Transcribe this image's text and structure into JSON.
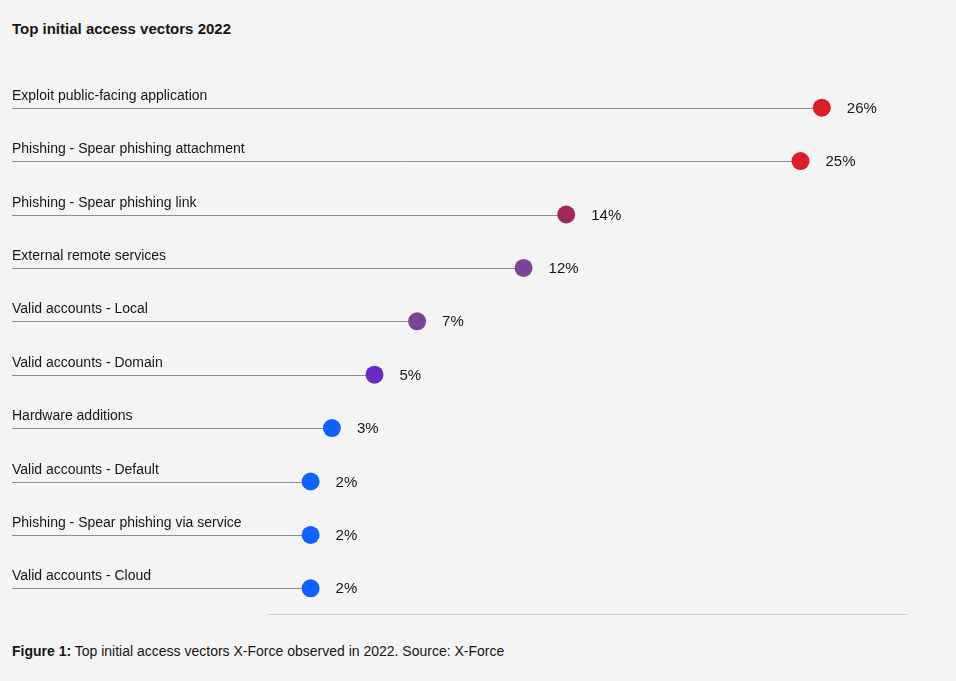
{
  "chart_data": {
    "type": "lollipop",
    "title": "Top initial access vectors 2022",
    "categories": [
      "Exploit public-facing application",
      "Phishing - Spear phishing attachment",
      "Phishing - Spear phishing link",
      "External remote services",
      "Valid accounts - Local",
      "Valid accounts - Domain",
      "Hardware additions",
      "Valid accounts - Default",
      "Phishing - Spear phishing via service",
      "Valid accounts - Cloud"
    ],
    "values": [
      26,
      25,
      14,
      12,
      7,
      5,
      3,
      2,
      2,
      2
    ],
    "value_labels": [
      "26%",
      "25%",
      "14%",
      "12%",
      "7%",
      "5%",
      "3%",
      "2%",
      "2%",
      "2%"
    ],
    "colors": [
      "#da1e28",
      "#da1e28",
      "#a2275a",
      "#7d4296",
      "#7d4296",
      "#6929c4",
      "#0f62fe",
      "#0f62fe",
      "#0f62fe",
      "#0f62fe"
    ],
    "xlim": [
      0,
      30
    ],
    "orientation": "horizontal",
    "data_labels": true,
    "tick_labels": false,
    "grid": false,
    "caption_label": "Figure 1:",
    "caption": "Top initial access vectors X-Force observed in 2022. Source: X-Force"
  }
}
